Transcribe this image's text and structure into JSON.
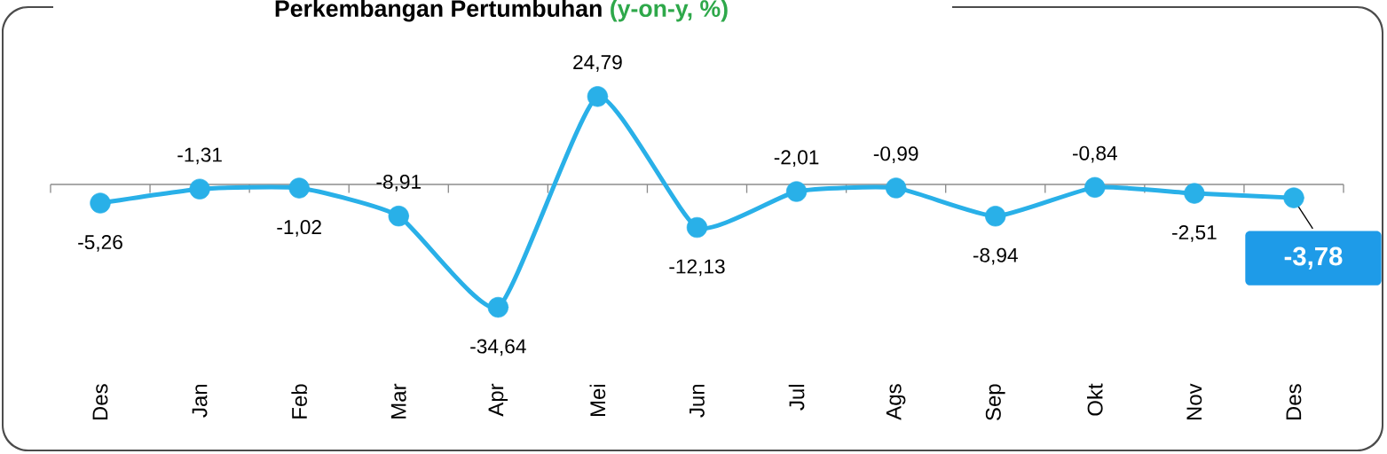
{
  "chart_data": {
    "type": "line",
    "title": "Perkembangan Pertumbuhan",
    "subtitle": "(y-on-y, %)",
    "categories": [
      "Des",
      "Jan",
      "Feb",
      "Mar",
      "Apr",
      "Mei",
      "Jun",
      "Jul",
      "Ags",
      "Sep",
      "Okt",
      "Nov",
      "Des"
    ],
    "values": [
      -5.26,
      -1.31,
      -1.02,
      -8.91,
      -34.64,
      24.79,
      -12.13,
      -2.01,
      -0.99,
      -8.94,
      -0.84,
      -2.51,
      -3.78
    ],
    "value_labels": [
      "-5,26",
      "-1,31",
      "-1,02",
      "-8,91",
      "-34,64",
      "24,79",
      "-12,13",
      "-2,01",
      "-0,99",
      "-8,94",
      "-0,84",
      "-2,51",
      "-3,78"
    ],
    "color": "#29b0e8",
    "marker": "circle",
    "ref_lines": [
      {
        "axis": "y",
        "value": 0,
        "color": "#8c8c8c"
      }
    ]
  }
}
